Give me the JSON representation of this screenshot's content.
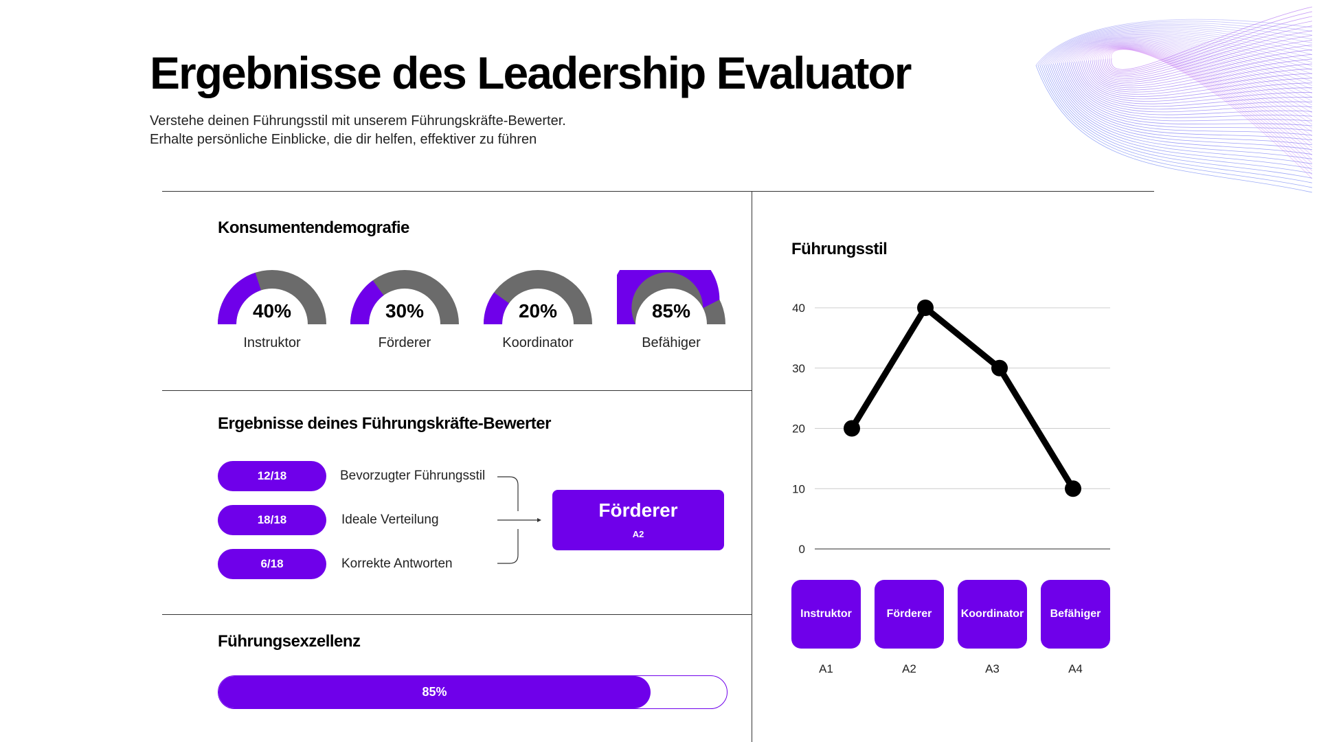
{
  "header": {
    "title": "Ergebnisse des Leadership Evaluator",
    "subtitle_line1": "Verstehe deinen Führungsstil mit unserem Führungskräfte-Bewerter.",
    "subtitle_line2": "Erhalte persönliche Einblicke, die dir helfen, effektiver zu führen"
  },
  "colors": {
    "accent": "#6f00ea",
    "gauge_rest": "#6b6b6b",
    "line": "#000000",
    "grid": "#cccccc"
  },
  "demographics": {
    "title": "Konsumentendemografie",
    "gauges": [
      {
        "value": 40,
        "value_label": "40%",
        "label": "Instruktor"
      },
      {
        "value": 30,
        "value_label": "30%",
        "label": "Förderer"
      },
      {
        "value": 20,
        "value_label": "20%",
        "label": "Koordinator"
      },
      {
        "value": 85,
        "value_label": "85%",
        "label": "Befähiger"
      }
    ]
  },
  "results": {
    "title": "Ergebnisse deines Führungskräfte-Bewerter",
    "rows": [
      {
        "score": "12/18",
        "label": "Bevorzugter Führungsstil"
      },
      {
        "score": "18/18",
        "label": "Ideale Verteilung"
      },
      {
        "score": "6/18",
        "label": "Korrekte Antworten"
      }
    ],
    "result_title": "Förderer",
    "result_code": "A2"
  },
  "excellence": {
    "title": "Führungsexzellenz",
    "value": 85,
    "value_label": "85%"
  },
  "chart_data": {
    "type": "line",
    "title": "Führungsstil",
    "x": [
      "A1",
      "A2",
      "A3",
      "A4"
    ],
    "categories": [
      "Instruktor",
      "Förderer",
      "Koordinator",
      "Befähiger"
    ],
    "values": [
      20,
      40,
      30,
      10
    ],
    "yticks": [
      0,
      10,
      20,
      30,
      40
    ],
    "ylim": [
      0,
      40
    ],
    "grid": true,
    "legend": "none"
  }
}
